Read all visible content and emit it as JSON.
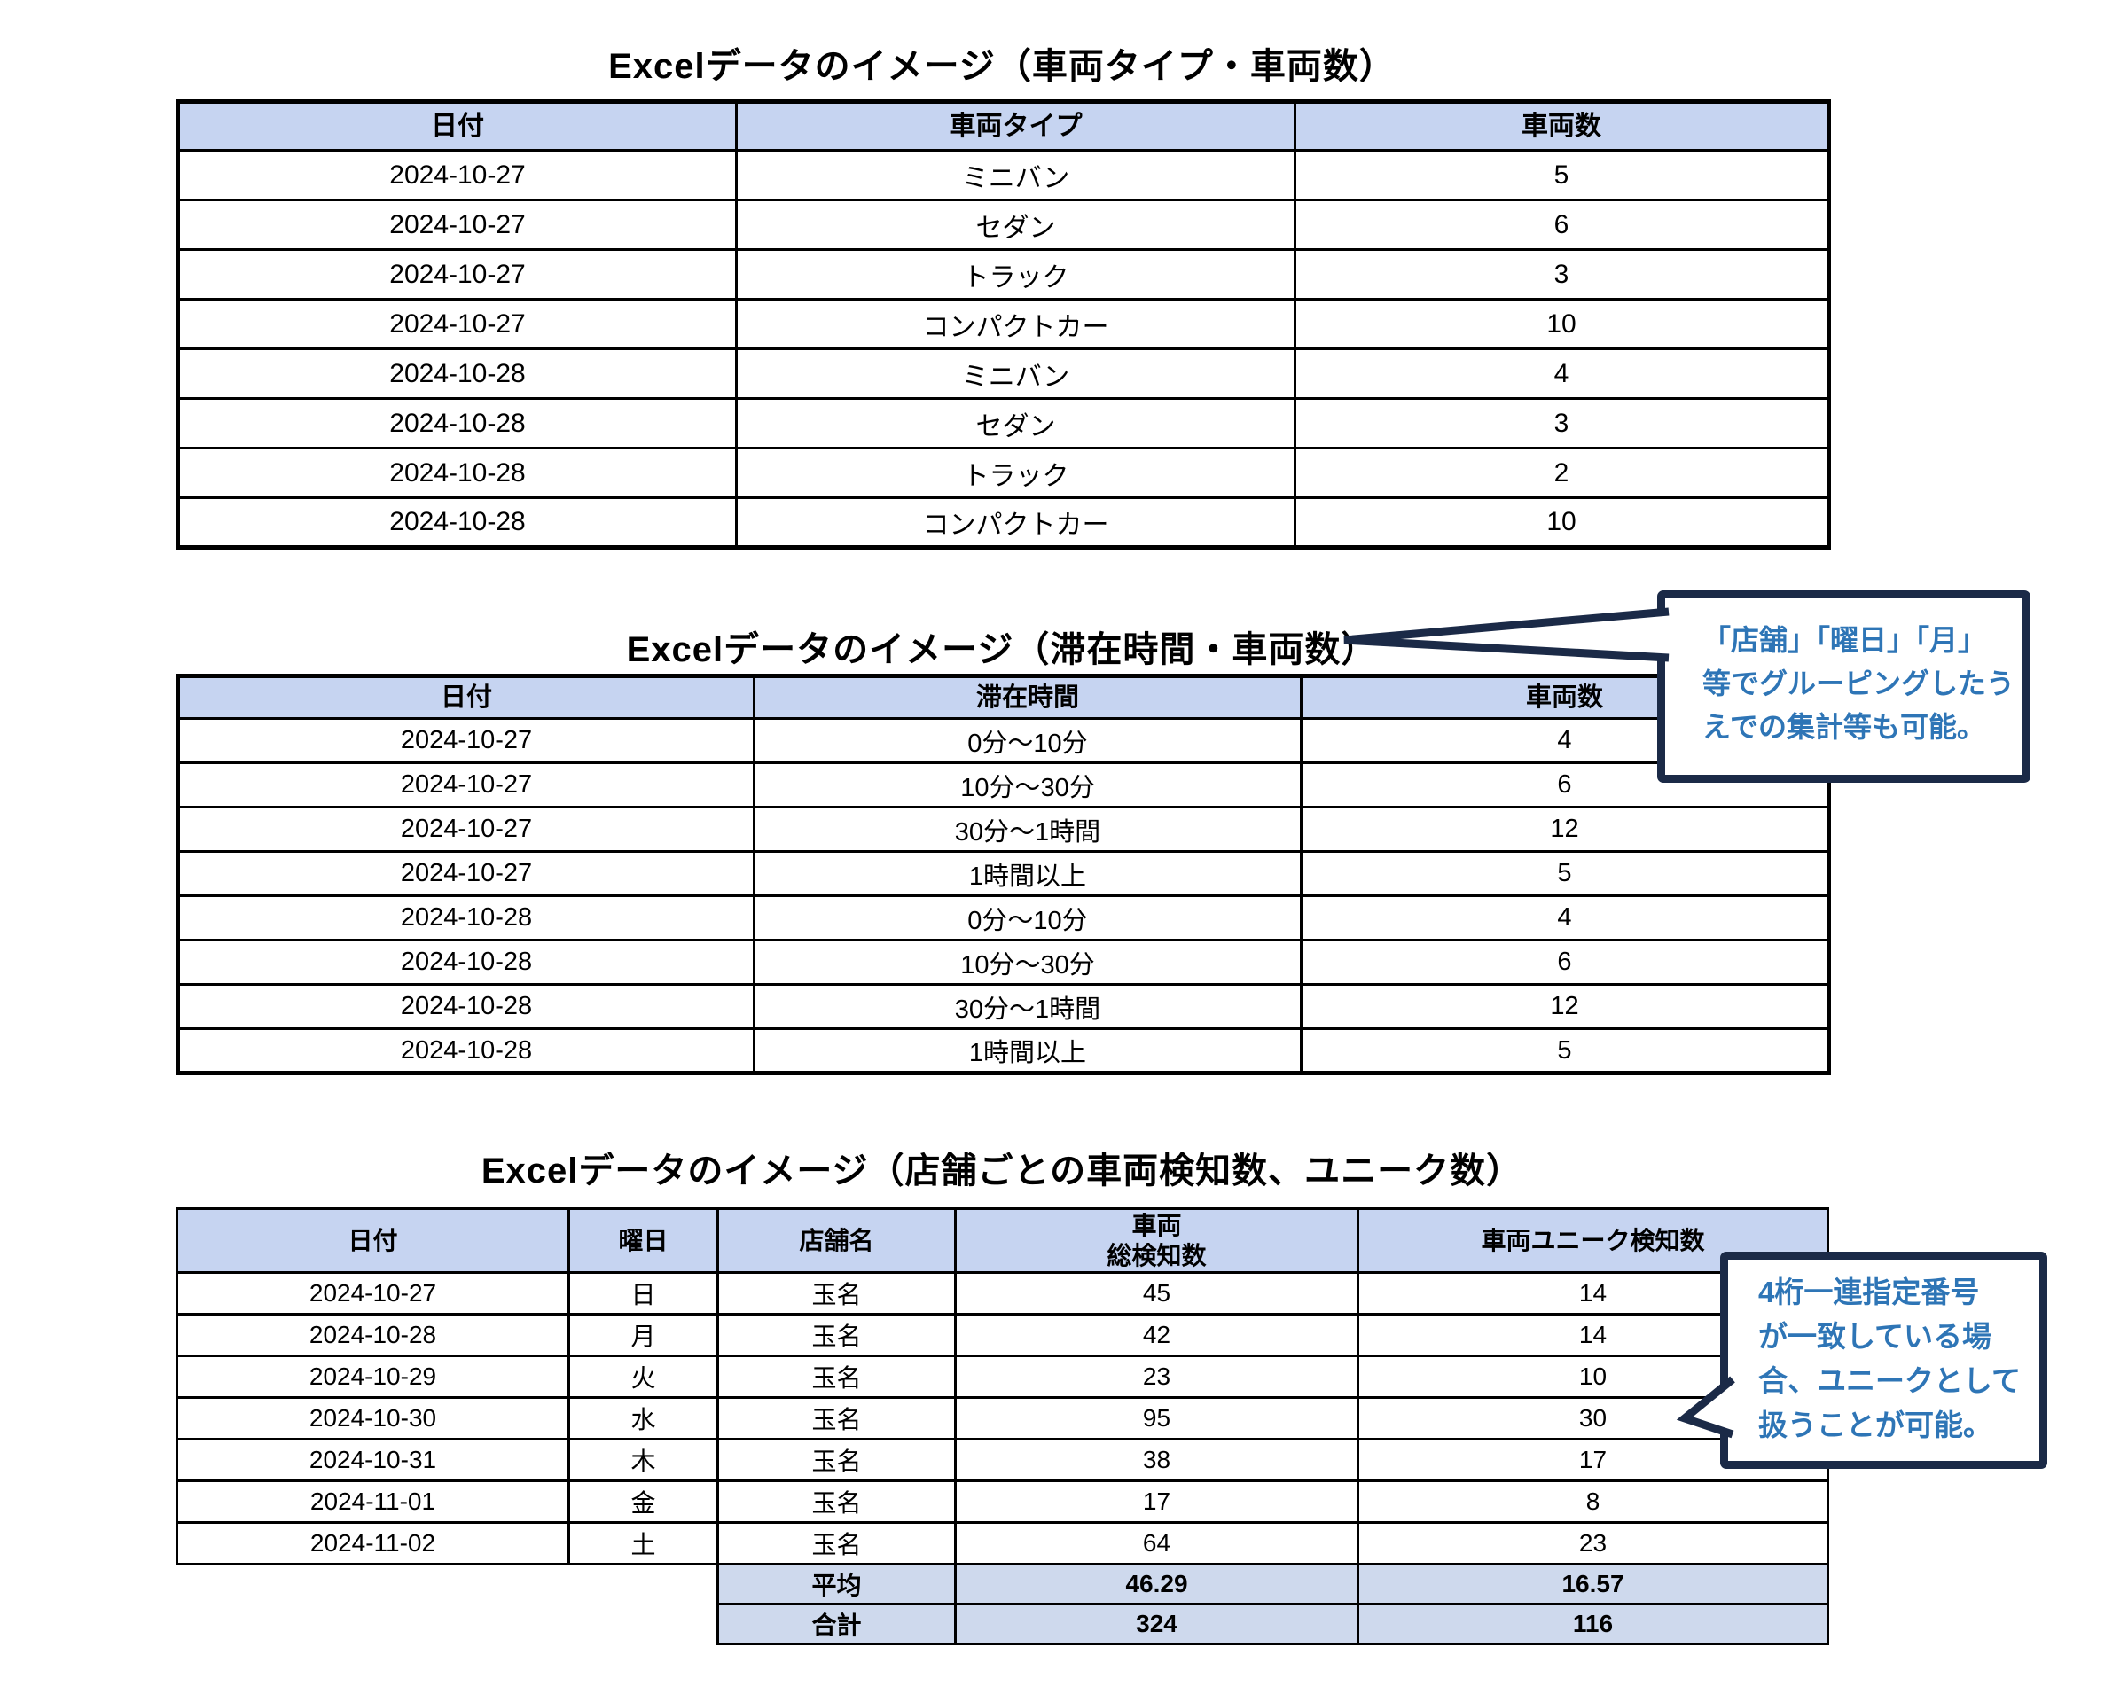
{
  "colors": {
    "header_fill": "#C6D4F1",
    "summary_fill": "#CED9ED",
    "table_border": "#000000",
    "callout_border": "#1B2A47",
    "callout_text": "#2E75B6",
    "page_background": "#FFFFFF"
  },
  "table1": {
    "title": "Excelデータのイメージ（車両タイプ・車両数）",
    "headers": [
      "日付",
      "車両タイプ",
      "車両数"
    ],
    "rows": [
      [
        "2024-10-27",
        "ミニバン",
        "5"
      ],
      [
        "2024-10-27",
        "セダン",
        "6"
      ],
      [
        "2024-10-27",
        "トラック",
        "3"
      ],
      [
        "2024-10-27",
        "コンパクトカー",
        "10"
      ],
      [
        "2024-10-28",
        "ミニバン",
        "4"
      ],
      [
        "2024-10-28",
        "セダン",
        "3"
      ],
      [
        "2024-10-28",
        "トラック",
        "2"
      ],
      [
        "2024-10-28",
        "コンパクトカー",
        "10"
      ]
    ]
  },
  "table2": {
    "title": "Excelデータのイメージ（滞在時間・車両数）",
    "headers": [
      "日付",
      "滞在時間",
      "車両数"
    ],
    "rows": [
      [
        "2024-10-27",
        "0分～10分",
        "4"
      ],
      [
        "2024-10-27",
        "10分～30分",
        "6"
      ],
      [
        "2024-10-27",
        "30分～1時間",
        "12"
      ],
      [
        "2024-10-27",
        "1時間以上",
        "5"
      ],
      [
        "2024-10-28",
        "0分～10分",
        "4"
      ],
      [
        "2024-10-28",
        "10分～30分",
        "6"
      ],
      [
        "2024-10-28",
        "30分～1時間",
        "12"
      ],
      [
        "2024-10-28",
        "1時間以上",
        "5"
      ]
    ]
  },
  "table3": {
    "title": "Excelデータのイメージ（店舗ごとの車両検知数、ユニーク数）",
    "headers": [
      "日付",
      "曜日",
      "店舗名",
      "車両\n総検知数",
      "車両ユニーク検知数"
    ],
    "rows": [
      [
        "2024-10-27",
        "日",
        "玉名",
        "45",
        "14"
      ],
      [
        "2024-10-28",
        "月",
        "玉名",
        "42",
        "14"
      ],
      [
        "2024-10-29",
        "火",
        "玉名",
        "23",
        "10"
      ],
      [
        "2024-10-30",
        "水",
        "玉名",
        "95",
        "30"
      ],
      [
        "2024-10-31",
        "木",
        "玉名",
        "38",
        "17"
      ],
      [
        "2024-11-01",
        "金",
        "玉名",
        "17",
        "8"
      ],
      [
        "2024-11-02",
        "土",
        "玉名",
        "64",
        "23"
      ]
    ],
    "summary": [
      [
        "平均",
        "46.29",
        "16.57"
      ],
      [
        "合計",
        "324",
        "116"
      ]
    ]
  },
  "callout1": {
    "lines": [
      "「店舗」「曜日」「月」",
      "等でグルーピングしたう",
      "えでの集計等も可能。"
    ]
  },
  "callout2": {
    "lines": [
      "4桁一連指定番号",
      "が一致している場",
      "合、ユニークとして",
      "扱うことが可能。"
    ]
  }
}
